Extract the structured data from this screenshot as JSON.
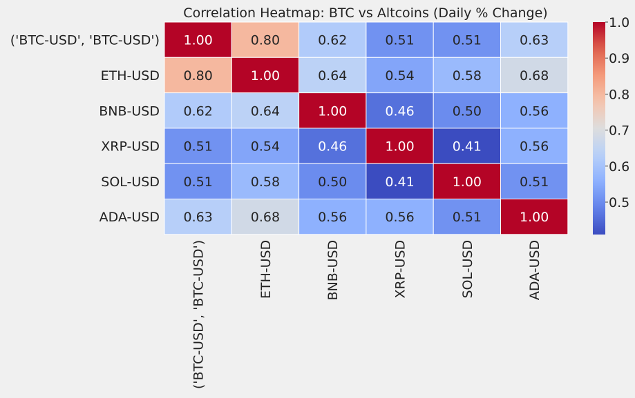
{
  "chart_data": {
    "type": "heatmap",
    "title": "Correlation Heatmap: BTC vs Altcoins (Daily % Change)",
    "xlabel": "",
    "ylabel": "",
    "row_labels": [
      "('BTC-USD', 'BTC-USD')",
      "ETH-USD",
      "BNB-USD",
      "XRP-USD",
      "SOL-USD",
      "ADA-USD"
    ],
    "col_labels": [
      "('BTC-USD', 'BTC-USD')",
      "ETH-USD",
      "BNB-USD",
      "XRP-USD",
      "SOL-USD",
      "ADA-USD"
    ],
    "values": [
      [
        1.0,
        0.8,
        0.62,
        0.51,
        0.51,
        0.63
      ],
      [
        0.8,
        1.0,
        0.64,
        0.54,
        0.58,
        0.68
      ],
      [
        0.62,
        0.64,
        1.0,
        0.46,
        0.5,
        0.56
      ],
      [
        0.51,
        0.54,
        0.46,
        1.0,
        0.41,
        0.56
      ],
      [
        0.51,
        0.58,
        0.5,
        0.41,
        1.0,
        0.51
      ],
      [
        0.63,
        0.68,
        0.56,
        0.56,
        0.51,
        1.0
      ]
    ],
    "value_format": "0.00",
    "annotate": true,
    "colormap": "coolwarm",
    "color_range": [
      0.41,
      1.0
    ],
    "colorbar_ticks": [
      0.5,
      0.6,
      0.7,
      0.8,
      0.9,
      1.0
    ],
    "cell_border_color": "#ffffff",
    "background_color": "#f0f0f0"
  }
}
